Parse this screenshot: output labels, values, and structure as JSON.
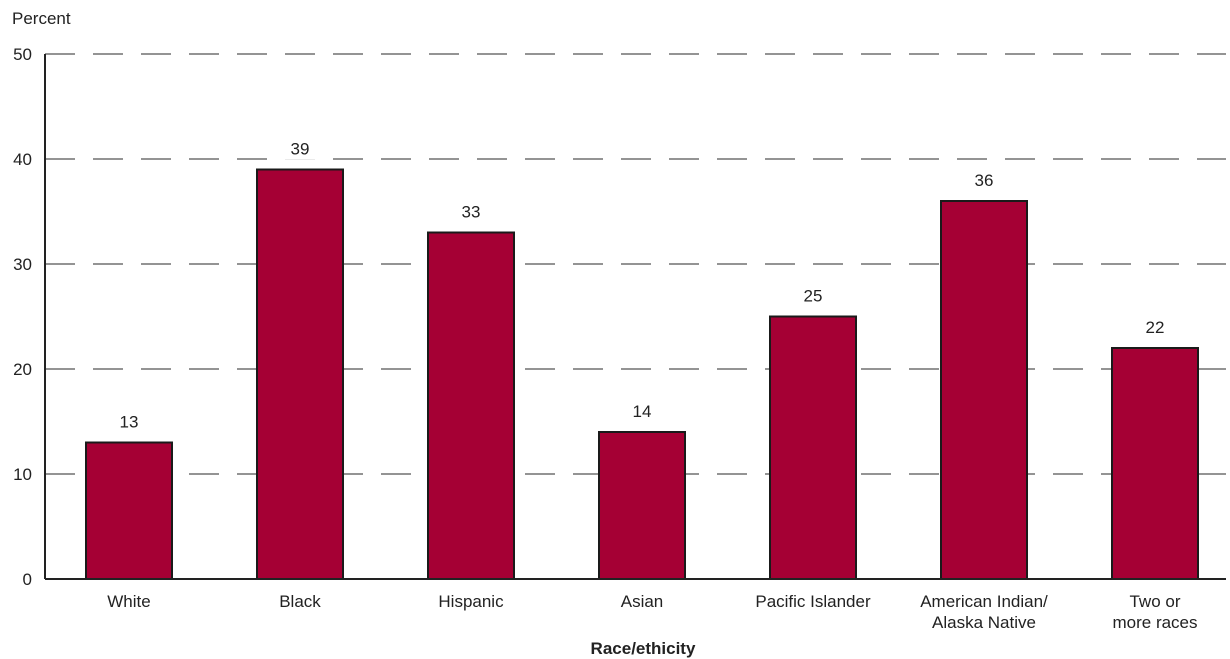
{
  "chart_data": {
    "type": "bar",
    "title": "",
    "ylabel": "Percent",
    "xlabel": "Race/ethicity",
    "categories": [
      [
        "White"
      ],
      [
        "Black"
      ],
      [
        "Hispanic"
      ],
      [
        "Asian"
      ],
      [
        "Pacific Islander"
      ],
      [
        "American Indian/",
        "Alaska Native"
      ],
      [
        "Two or",
        "more races"
      ]
    ],
    "values": [
      13,
      39,
      33,
      14,
      25,
      36,
      22
    ],
    "ylim": [
      0,
      50
    ],
    "yticks": [
      0,
      10,
      20,
      30,
      40,
      50
    ],
    "grid": "dashed horizontal",
    "legend": "none",
    "colors": {
      "bar": "#a50034",
      "bar_outline": "#1a1a1a",
      "axis": "#222222",
      "grid": "#555555"
    }
  }
}
